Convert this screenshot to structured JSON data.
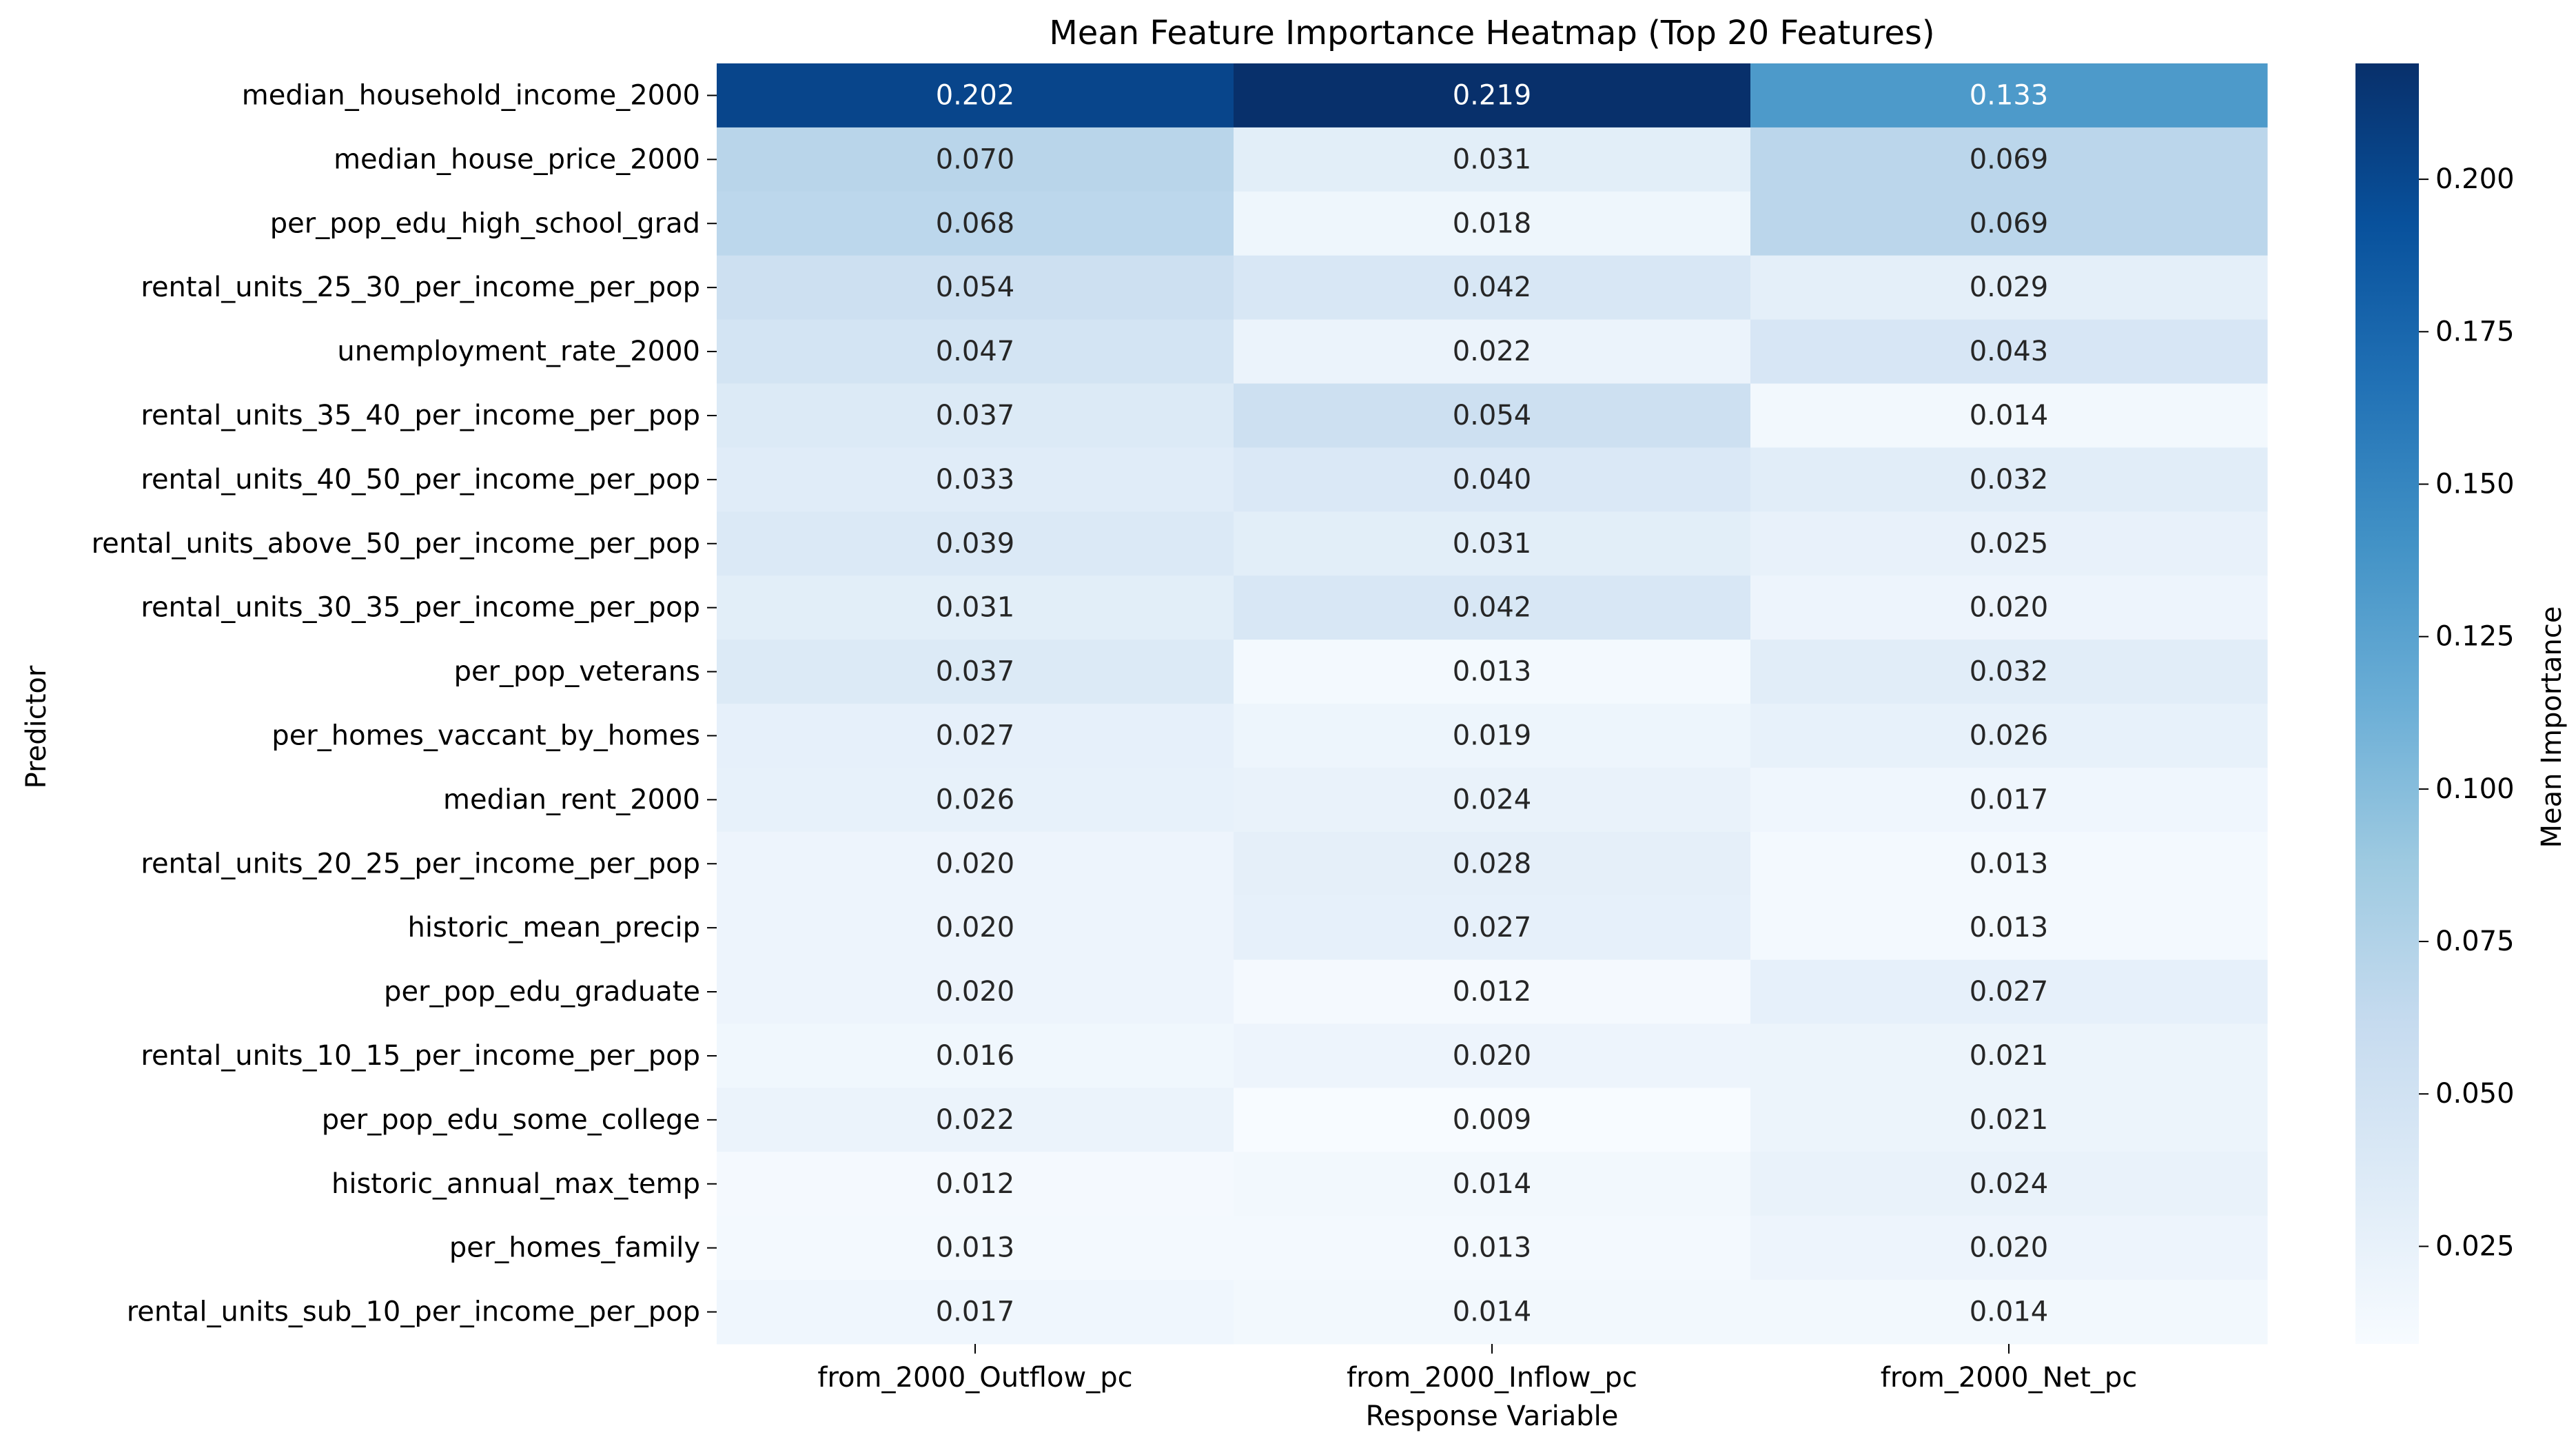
{
  "chart_data": {
    "type": "heatmap",
    "title": "Mean Feature Importance Heatmap (Top 20 Features)",
    "xlabel": "Response Variable",
    "ylabel": "Predictor",
    "colorbar_label": "Mean Importance",
    "colormap": "Blues",
    "vmin": 0.009,
    "vmax": 0.219,
    "colorbar_ticks": [
      "0.025",
      "0.050",
      "0.075",
      "0.100",
      "0.125",
      "0.150",
      "0.175",
      "0.200"
    ],
    "columns": [
      "from_2000_Outflow_pc",
      "from_2000_Inflow_pc",
      "from_2000_Net_pc"
    ],
    "rows": [
      "median_household_income_2000",
      "median_house_price_2000",
      "per_pop_edu_high_school_grad",
      "rental_units_25_30_per_income_per_pop",
      "unemployment_rate_2000",
      "rental_units_35_40_per_income_per_pop",
      "rental_units_40_50_per_income_per_pop",
      "rental_units_above_50_per_income_per_pop",
      "rental_units_30_35_per_income_per_pop",
      "per_pop_veterans",
      "per_homes_vaccant_by_homes",
      "median_rent_2000",
      "rental_units_20_25_per_income_per_pop",
      "historic_mean_precip",
      "per_pop_edu_graduate",
      "rental_units_10_15_per_income_per_pop",
      "per_pop_edu_some_college",
      "historic_annual_max_temp",
      "per_homes_family",
      "rental_units_sub_10_per_income_per_pop"
    ],
    "values": [
      [
        "0.202",
        "0.219",
        "0.133"
      ],
      [
        "0.070",
        "0.031",
        "0.069"
      ],
      [
        "0.068",
        "0.018",
        "0.069"
      ],
      [
        "0.054",
        "0.042",
        "0.029"
      ],
      [
        "0.047",
        "0.022",
        "0.043"
      ],
      [
        "0.037",
        "0.054",
        "0.014"
      ],
      [
        "0.033",
        "0.040",
        "0.032"
      ],
      [
        "0.039",
        "0.031",
        "0.025"
      ],
      [
        "0.031",
        "0.042",
        "0.020"
      ],
      [
        "0.037",
        "0.013",
        "0.032"
      ],
      [
        "0.027",
        "0.019",
        "0.026"
      ],
      [
        "0.026",
        "0.024",
        "0.017"
      ],
      [
        "0.020",
        "0.028",
        "0.013"
      ],
      [
        "0.020",
        "0.027",
        "0.013"
      ],
      [
        "0.020",
        "0.012",
        "0.027"
      ],
      [
        "0.016",
        "0.020",
        "0.021"
      ],
      [
        "0.022",
        "0.009",
        "0.021"
      ],
      [
        "0.012",
        "0.014",
        "0.024"
      ],
      [
        "0.013",
        "0.013",
        "0.020"
      ],
      [
        "0.017",
        "0.014",
        "0.014"
      ]
    ]
  }
}
